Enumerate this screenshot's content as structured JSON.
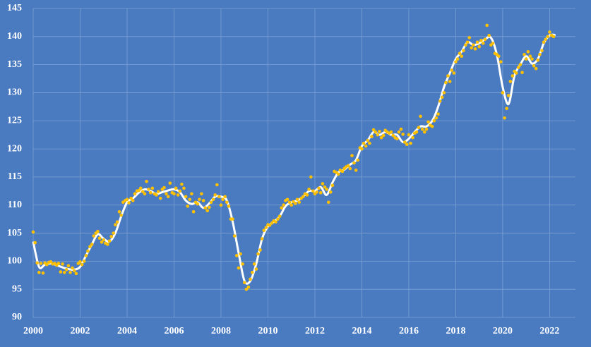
{
  "chart_data": {
    "type": "scatter-line",
    "xlim": [
      2000,
      2023.1
    ],
    "xticks": [
      2000,
      2002,
      2004,
      2006,
      2008,
      2010,
      2012,
      2014,
      2016,
      2018,
      2020,
      2022
    ],
    "ylim": [
      90,
      145
    ],
    "yticks": [
      90,
      95,
      100,
      105,
      110,
      115,
      120,
      125,
      130,
      135,
      140,
      145
    ],
    "grid": true,
    "series": [
      {
        "kind": "points",
        "color": "#ffc000",
        "x": [
          2000,
          2000.08,
          2000.17,
          2000.25,
          2000.33,
          2000.42,
          2000.5,
          2000.58,
          2000.67,
          2000.75,
          2000.83,
          2000.92,
          2001,
          2001.08,
          2001.17,
          2001.25,
          2001.33,
          2001.42,
          2001.5,
          2001.58,
          2001.67,
          2001.75,
          2001.83,
          2001.92,
          2002,
          2002.08,
          2002.17,
          2002.25,
          2002.33,
          2002.42,
          2002.5,
          2002.58,
          2002.67,
          2002.75,
          2002.83,
          2002.92,
          2003,
          2003.08,
          2003.17,
          2003.25,
          2003.33,
          2003.42,
          2003.5,
          2003.58,
          2003.67,
          2003.75,
          2003.83,
          2003.92,
          2004,
          2004.08,
          2004.17,
          2004.25,
          2004.33,
          2004.42,
          2004.5,
          2004.58,
          2004.67,
          2004.75,
          2004.83,
          2004.92,
          2005,
          2005.08,
          2005.17,
          2005.25,
          2005.33,
          2005.42,
          2005.5,
          2005.58,
          2005.67,
          2005.75,
          2005.83,
          2005.92,
          2006,
          2006.08,
          2006.17,
          2006.25,
          2006.33,
          2006.42,
          2006.5,
          2006.58,
          2006.67,
          2006.75,
          2006.83,
          2006.92,
          2007,
          2007.08,
          2007.17,
          2007.25,
          2007.33,
          2007.42,
          2007.5,
          2007.58,
          2007.67,
          2007.75,
          2007.83,
          2007.92,
          2008,
          2008.08,
          2008.17,
          2008.25,
          2008.33,
          2008.42,
          2008.5,
          2008.58,
          2008.67,
          2008.75,
          2008.83,
          2008.92,
          2009,
          2009.08,
          2009.17,
          2009.25,
          2009.33,
          2009.42,
          2009.5,
          2009.58,
          2009.67,
          2009.75,
          2009.83,
          2009.92,
          2010,
          2010.08,
          2010.17,
          2010.25,
          2010.33,
          2010.42,
          2010.5,
          2010.58,
          2010.67,
          2010.75,
          2010.83,
          2010.92,
          2011,
          2011.08,
          2011.17,
          2011.25,
          2011.33,
          2011.42,
          2011.5,
          2011.58,
          2011.67,
          2011.75,
          2011.83,
          2011.92,
          2012,
          2012.08,
          2012.17,
          2012.25,
          2012.33,
          2012.42,
          2012.5,
          2012.58,
          2012.67,
          2012.75,
          2012.83,
          2012.92,
          2013,
          2013.08,
          2013.17,
          2013.25,
          2013.33,
          2013.42,
          2013.5,
          2013.58,
          2013.67,
          2013.75,
          2013.83,
          2013.92,
          2014,
          2014.08,
          2014.17,
          2014.25,
          2014.33,
          2014.42,
          2014.5,
          2014.58,
          2014.67,
          2014.75,
          2014.83,
          2014.92,
          2015,
          2015.08,
          2015.17,
          2015.25,
          2015.33,
          2015.42,
          2015.5,
          2015.58,
          2015.67,
          2015.75,
          2015.83,
          2015.92,
          2016,
          2016.08,
          2016.17,
          2016.25,
          2016.33,
          2016.42,
          2016.5,
          2016.58,
          2016.67,
          2016.75,
          2016.83,
          2016.92,
          2017,
          2017.08,
          2017.17,
          2017.25,
          2017.33,
          2017.42,
          2017.5,
          2017.58,
          2017.67,
          2017.75,
          2017.83,
          2017.92,
          2018,
          2018.08,
          2018.17,
          2018.25,
          2018.33,
          2018.42,
          2018.5,
          2018.58,
          2018.67,
          2018.75,
          2018.83,
          2018.92,
          2019,
          2019.08,
          2019.17,
          2019.25,
          2019.33,
          2019.42,
          2019.5,
          2019.58,
          2019.67,
          2019.75,
          2019.83,
          2019.92,
          2020,
          2020.08,
          2020.17,
          2020.25,
          2020.33,
          2020.42,
          2020.5,
          2020.58,
          2020.67,
          2020.75,
          2020.83,
          2020.92,
          2021,
          2021.08,
          2021.17,
          2021.25,
          2021.33,
          2021.42,
          2021.5,
          2021.58,
          2021.67,
          2021.75,
          2021.83,
          2021.92,
          2022,
          2022.08,
          2022.17
        ],
        "values": [
          105.2,
          103.3,
          99.7,
          98.0,
          99.6,
          97.9,
          99.7,
          99.4,
          99.8,
          99.9,
          99.5,
          99.6,
          99.3,
          99.6,
          98.1,
          99.5,
          98.0,
          98.5,
          99.2,
          98.0,
          98.8,
          98.3,
          97.8,
          99.6,
          99.9,
          99.4,
          100.0,
          101.0,
          101.8,
          102.6,
          103.0,
          104.5,
          105.0,
          105.3,
          104.1,
          103.4,
          103.8,
          103.2,
          103.0,
          103.6,
          104.4,
          105.0,
          106.5,
          107.0,
          108.8,
          108.2,
          110.5,
          110.8,
          111.0,
          110.4,
          111.2,
          110.8,
          112.0,
          112.5,
          112.6,
          113.0,
          112.4,
          112.0,
          114.2,
          112.8,
          112.2,
          113.0,
          112.0,
          111.8,
          112.4,
          111.2,
          112.8,
          113.1,
          112.0,
          111.5,
          113.9,
          112.2,
          112.0,
          113.0,
          111.8,
          112.5,
          113.7,
          113.0,
          111.5,
          109.8,
          111.0,
          112.0,
          108.8,
          110.5,
          110.2,
          111.0,
          112.0,
          110.8,
          109.5,
          109.0,
          109.6,
          110.5,
          111.0,
          111.8,
          113.6,
          111.5,
          110.0,
          111.0,
          111.5,
          110.5,
          109.8,
          107.5,
          107.5,
          104.5,
          101.0,
          98.8,
          101.3,
          99.5,
          96.2,
          95.0,
          95.4,
          96.8,
          98.0,
          99.5,
          98.6,
          101.3,
          102.0,
          104.0,
          105.5,
          106.0,
          106.5,
          106.4,
          106.8,
          107.2,
          107.0,
          107.5,
          108.0,
          109.5,
          110.0,
          110.8,
          111.0,
          110.5,
          110.0,
          110.6,
          110.3,
          111.0,
          110.5,
          111.2,
          111.5,
          112.0,
          111.8,
          112.8,
          115.0,
          112.5,
          112.0,
          112.3,
          113.0,
          112.2,
          113.8,
          113.2,
          112.8,
          110.5,
          112.3,
          113.5,
          116.0,
          115.8,
          115.5,
          116.2,
          116.0,
          116.5,
          116.8,
          117.0,
          116.5,
          118.8,
          117.5,
          116.2,
          118.0,
          120.2,
          120.0,
          121.0,
          120.5,
          121.5,
          121.0,
          122.2,
          123.4,
          123.0,
          122.5,
          123.1,
          122.0,
          122.4,
          123.3,
          123.0,
          122.8,
          123.0,
          122.4,
          122.0,
          121.8,
          123.0,
          123.5,
          122.6,
          121.2,
          120.8,
          122.5,
          121.0,
          122.0,
          122.8,
          123.0,
          123.8,
          125.8,
          123.5,
          123.0,
          123.5,
          124.8,
          124.2,
          124.0,
          125.0,
          125.5,
          126.2,
          128.5,
          129.2,
          130.0,
          131.8,
          133.0,
          132.0,
          134.0,
          133.5,
          135.5,
          136.0,
          137.0,
          136.5,
          137.5,
          138.5,
          139.0,
          139.8,
          138.0,
          138.5,
          137.8,
          139.0,
          138.2,
          139.3,
          138.8,
          139.5,
          142.0,
          140.2,
          138.5,
          138.8,
          137.0,
          136.8,
          136.5,
          135.5,
          130.0,
          125.5,
          127.2,
          129.5,
          132.0,
          133.0,
          133.8,
          133.5,
          134.5,
          135.0,
          133.6,
          136.8,
          136.0,
          137.3,
          136.5,
          136.0,
          134.8,
          134.3,
          135.8,
          136.8,
          137.5,
          139.0,
          139.5,
          140.0,
          140.8,
          140.2,
          140.0
        ]
      },
      {
        "kind": "line",
        "color": "#ffffff",
        "x": [
          2000,
          2000.25,
          2000.5,
          2000.75,
          2001,
          2001.25,
          2001.5,
          2001.75,
          2002,
          2002.25,
          2002.5,
          2002.75,
          2003,
          2003.25,
          2003.5,
          2003.75,
          2004,
          2004.25,
          2004.5,
          2004.75,
          2005,
          2005.25,
          2005.5,
          2005.75,
          2006,
          2006.25,
          2006.5,
          2006.75,
          2007,
          2007.25,
          2007.5,
          2007.75,
          2008,
          2008.25,
          2008.5,
          2008.75,
          2009,
          2009.25,
          2009.5,
          2009.75,
          2010,
          2010.25,
          2010.5,
          2010.75,
          2011,
          2011.25,
          2011.5,
          2011.75,
          2012,
          2012.25,
          2012.5,
          2012.75,
          2013,
          2013.25,
          2013.5,
          2013.75,
          2014,
          2014.25,
          2014.5,
          2014.75,
          2015,
          2015.25,
          2015.5,
          2015.75,
          2016,
          2016.25,
          2016.5,
          2016.75,
          2017,
          2017.25,
          2017.5,
          2017.75,
          2018,
          2018.25,
          2018.5,
          2018.75,
          2019,
          2019.25,
          2019.5,
          2019.75,
          2020,
          2020.25,
          2020.5,
          2020.75,
          2021,
          2021.25,
          2021.5,
          2021.75,
          2022,
          2022.25
        ],
        "values": [
          103.5,
          99.0,
          99.4,
          99.6,
          99.3,
          98.9,
          98.6,
          98.5,
          99.0,
          101.0,
          103.0,
          104.8,
          104.0,
          103.5,
          105.0,
          108.0,
          110.5,
          111.2,
          112.2,
          112.8,
          112.5,
          112.0,
          112.3,
          112.6,
          112.8,
          112.3,
          110.8,
          110.2,
          110.5,
          109.5,
          110.3,
          111.5,
          111.5,
          110.8,
          107.0,
          101.5,
          96.5,
          96.5,
          99.5,
          104.0,
          106.2,
          107.0,
          108.0,
          109.8,
          110.5,
          110.8,
          111.5,
          112.5,
          112.5,
          113.2,
          111.8,
          114.0,
          115.8,
          116.3,
          117.2,
          118.0,
          120.5,
          121.5,
          123.0,
          122.5,
          123.0,
          122.5,
          122.5,
          121.2,
          121.8,
          123.0,
          124.0,
          124.0,
          125.0,
          127.5,
          131.0,
          133.5,
          136.0,
          137.3,
          139.0,
          138.5,
          138.8,
          139.5,
          139.8,
          136.8,
          131.0,
          128.0,
          133.0,
          135.0,
          136.5,
          135.2,
          136.0,
          138.8,
          140.2,
          140.3
        ]
      }
    ]
  }
}
